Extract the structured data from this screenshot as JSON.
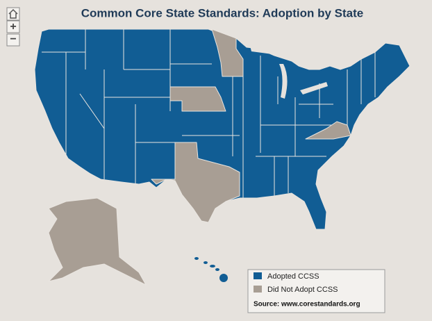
{
  "title": "Common Core State Standards: Adoption by State",
  "controls": {
    "zoom_in": "+",
    "zoom_out": "−"
  },
  "legend": {
    "items": [
      {
        "label": "Adopted CCSS",
        "color": "#115d94"
      },
      {
        "label": "Did Not Adopt CCSS",
        "color": "#a89e94"
      }
    ],
    "source": "Source: www.corestandards.org"
  }
}
